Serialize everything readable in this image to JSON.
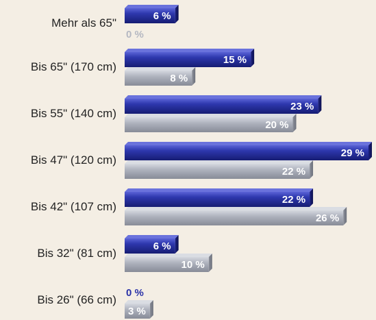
{
  "chart_data": {
    "type": "bar",
    "orientation": "horizontal",
    "categories": [
      "Mehr als 65\"",
      "Bis 65\" (170 cm)",
      "Bis 55\" (140 cm)",
      "Bis 47\" (120 cm)",
      "Bis 42\" (107 cm)",
      "Bis 32\" (81 cm)",
      "Bis 26\" (66 cm)"
    ],
    "series": [
      {
        "color": "#2a34a6",
        "values": [
          6,
          15,
          23,
          29,
          22,
          6,
          0
        ],
        "labels": [
          "6 %",
          "15 %",
          "23 %",
          "29 %",
          "22 %",
          "6 %",
          "0 %"
        ]
      },
      {
        "color": "#a9adb8",
        "values": [
          0,
          8,
          20,
          22,
          26,
          10,
          3
        ],
        "labels": [
          "0 %",
          "8 %",
          "20 %",
          "22 %",
          "26 %",
          "10 %",
          "3 %"
        ]
      }
    ],
    "xlim": [
      0,
      29
    ],
    "grid": false,
    "legend": "none"
  }
}
